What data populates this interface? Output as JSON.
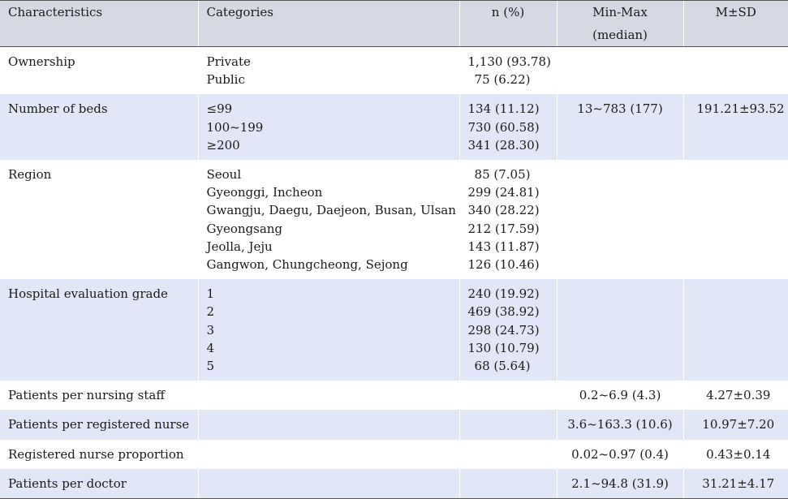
{
  "table": {
    "headers": {
      "characteristics": "Characteristics",
      "categories": "Categories",
      "n": "n (%)",
      "minmax": "Min-Max (median)",
      "msd": "M±SD"
    },
    "rows": [
      {
        "characteristic": "Ownership",
        "categories": [
          "Private",
          "Public"
        ],
        "n": [
          "1,130 (93.78)",
          "75 (6.22)"
        ],
        "minmax": "",
        "msd": ""
      },
      {
        "characteristic": "Number of beds",
        "categories": [
          "≤99",
          "100~199",
          "≥200"
        ],
        "n": [
          "134 (11.12)",
          "730 (60.58)",
          "341 (28.30)"
        ],
        "minmax": "13~783 (177)",
        "msd": "191.21±93.52"
      },
      {
        "characteristic": "Region",
        "categories": [
          "Seoul",
          "Gyeonggi, Incheon",
          "Gwangju, Daegu, Daejeon, Busan, Ulsan",
          "Gyeongsang",
          "Jeolla, Jeju",
          "Gangwon, Chungcheong, Sejong"
        ],
        "n": [
          "85 (7.05)",
          "299 (24.81)",
          "340 (28.22)",
          "212 (17.59)",
          "143 (11.87)",
          "126 (10.46)"
        ],
        "minmax": "",
        "msd": ""
      },
      {
        "characteristic": "Hospital evaluation grade",
        "categories": [
          "1",
          "2",
          "3",
          "4",
          "5"
        ],
        "n": [
          "240 (19.92)",
          "469 (38.92)",
          "298 (24.73)",
          "130 (10.79)",
          "68 (5.64)"
        ],
        "minmax": "",
        "msd": ""
      },
      {
        "characteristic": "Patients per nursing staff",
        "categories": [],
        "n": [],
        "minmax": "0.2~6.9 (4.3)",
        "msd": "4.27±0.39"
      },
      {
        "characteristic": "Patients per registered nurse",
        "categories": [],
        "n": [],
        "minmax": "3.6~163.3 (10.6)",
        "msd": "10.97±7.20"
      },
      {
        "characteristic": "Registered nurse proportion",
        "categories": [],
        "n": [],
        "minmax": "0.02~0.97 (0.4)",
        "msd": "0.43±0.14"
      },
      {
        "characteristic": "Patients per doctor",
        "categories": [],
        "n": [],
        "minmax": "2.1~94.8 (31.9)",
        "msd": "31.21±4.17"
      }
    ]
  },
  "colors": {
    "header_bg": "#d6d9e4",
    "shaded_row_bg": "#e2e7f7",
    "rule": "#555555"
  }
}
